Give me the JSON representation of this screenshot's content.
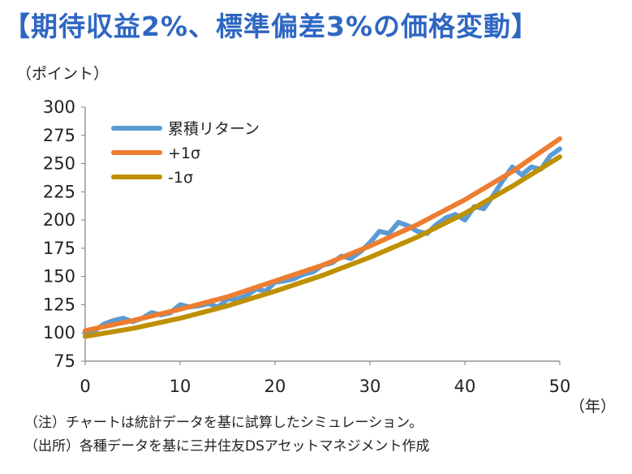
{
  "title": "【期待収益2%、標準偏差3%の価格変動】",
  "y_unit": "（ポイント）",
  "x_unit": "（年）",
  "notes": [
    "（注）チャートは統計データを基に試算したシミュレーション。",
    "（出所）各種データを基に三井住友DSアセットマネジメント作成"
  ],
  "chart_data": {
    "type": "line",
    "title": "期待収益2%、標準偏差3%の価格変動",
    "xlabel": "（年）",
    "ylabel": "（ポイント）",
    "xlim": [
      0,
      50
    ],
    "ylim": [
      75,
      300
    ],
    "x_ticks": [
      "0",
      "10",
      "20",
      "30",
      "40",
      "50"
    ],
    "y_ticks": [
      "300",
      "275",
      "250",
      "225",
      "200",
      "175",
      "150",
      "125",
      "100",
      "75"
    ],
    "legend_position": "top-left",
    "series": [
      {
        "name": "累積リターン",
        "color": "#5b9bd5",
        "x": [
          0,
          1,
          2,
          3,
          4,
          5,
          6,
          7,
          8,
          9,
          10,
          11,
          12,
          13,
          14,
          15,
          16,
          17,
          18,
          19,
          20,
          21,
          22,
          23,
          24,
          25,
          26,
          27,
          28,
          29,
          30,
          31,
          32,
          33,
          34,
          35,
          36,
          37,
          38,
          39,
          40,
          41,
          42,
          43,
          44,
          45,
          46,
          47,
          48,
          49,
          50
        ],
        "values": [
          100,
          102,
          108,
          111,
          113,
          110,
          113,
          118,
          116,
          118,
          125,
          123,
          124,
          126,
          123,
          130,
          130,
          133,
          139,
          137,
          145,
          146,
          148,
          152,
          154,
          160,
          162,
          168,
          166,
          172,
          180,
          190,
          188,
          198,
          195,
          190,
          188,
          196,
          202,
          205,
          200,
          212,
          210,
          222,
          235,
          247,
          240,
          247,
          245,
          257,
          263
        ]
      },
      {
        "name": "+1σ",
        "color": "#ed7d31",
        "x": [
          0,
          5,
          10,
          15,
          20,
          25,
          30,
          35,
          40,
          45,
          50
        ],
        "values": [
          102,
          111,
          121,
          132,
          146,
          160,
          177,
          196,
          218,
          243,
          272
        ]
      },
      {
        "name": "-1σ",
        "color": "#bf9000",
        "x": [
          0,
          5,
          10,
          15,
          20,
          25,
          30,
          35,
          40,
          45,
          50
        ],
        "values": [
          97,
          104,
          113,
          124,
          137,
          151,
          167,
          185,
          206,
          230,
          256
        ]
      }
    ]
  }
}
